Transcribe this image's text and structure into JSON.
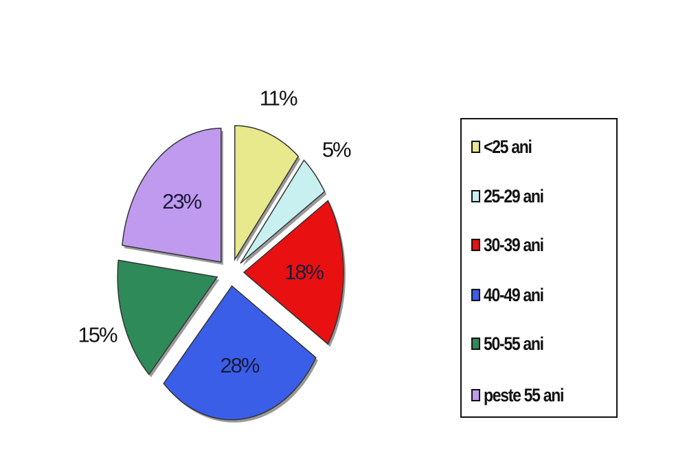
{
  "chart_data": {
    "type": "pie",
    "categories": [
      "<25 ani",
      "25-29 ani",
      "30-39 ani",
      "40-49 ani",
      "50-55 ani",
      "peste 55 ani"
    ],
    "values": [
      11,
      5,
      18,
      28,
      15,
      23
    ],
    "labels": [
      "11%",
      "5%",
      "18%",
      "28%",
      "15%",
      "23%"
    ],
    "label_positions": [
      "outside",
      "outside",
      "inside",
      "inside",
      "outside",
      "inside"
    ],
    "colors": [
      "#e8e88c",
      "#c8f0f0",
      "#e81010",
      "#3a5ee8",
      "#2e8a58",
      "#c09aee"
    ],
    "exploded": true,
    "start": "12 o'clock, clockwise",
    "legend_position": "right"
  }
}
